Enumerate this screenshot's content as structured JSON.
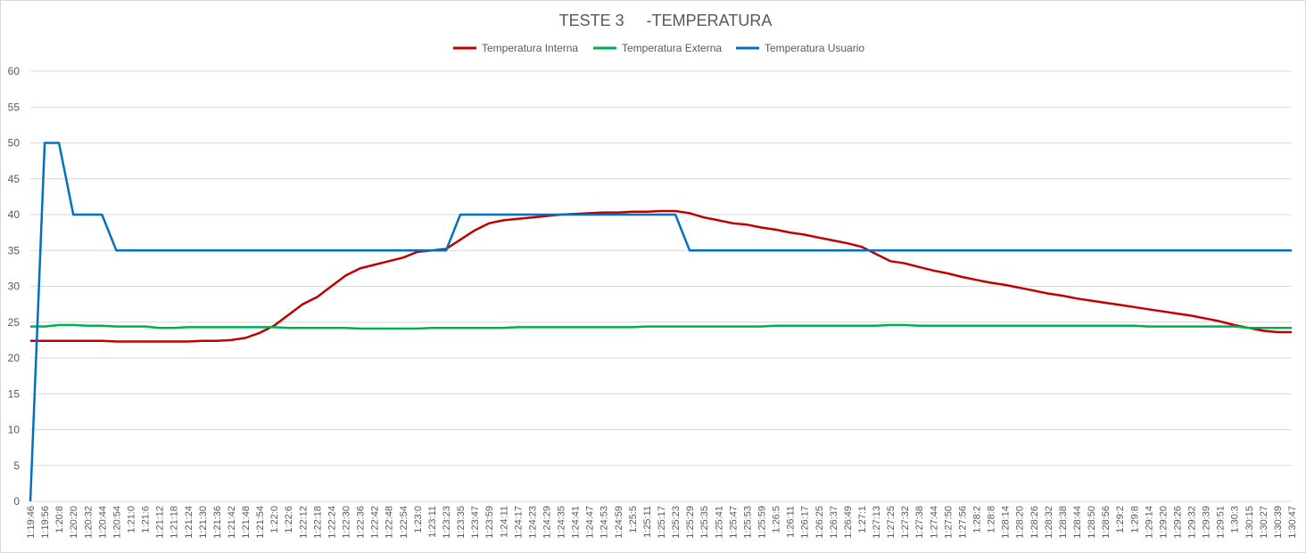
{
  "chart_data": {
    "type": "line",
    "title": "TESTE 3     -TEMPERATURA",
    "xlabel": "",
    "ylabel": "",
    "ylim": [
      0,
      60
    ],
    "yticks": [
      0,
      5,
      10,
      15,
      20,
      25,
      30,
      35,
      40,
      45,
      50,
      55,
      60
    ],
    "grid": "horizontal",
    "legend_position": "top",
    "x_tick_labels": [
      "1:19:46",
      "1:19:56",
      "1:20:8",
      "1:20:20",
      "1:20:32",
      "1:20:44",
      "1:20:54",
      "1:21:0",
      "1:21:6",
      "1:21:12",
      "1:21:18",
      "1:21:24",
      "1:21:30",
      "1:21:36",
      "1:21:42",
      "1:21:48",
      "1:21:54",
      "1:22:0",
      "1:22:6",
      "1:22:12",
      "1:22:18",
      "1:22:24",
      "1:22:30",
      "1:22:36",
      "1:22:42",
      "1:22:48",
      "1:22:54",
      "1:23:0",
      "1:23:11",
      "1:23:23",
      "1:23:35",
      "1:23:47",
      "1:23:59",
      "1:24:11",
      "1:24:17",
      "1:24:23",
      "1:24:29",
      "1:24:35",
      "1:24:41",
      "1:24:47",
      "1:24:53",
      "1:24:59",
      "1:25:5",
      "1:25:11",
      "1:25:17",
      "1:25:23",
      "1:25:29",
      "1:25:35",
      "1:25:41",
      "1:25:47",
      "1:25:53",
      "1:25:59",
      "1:26:5",
      "1:26:11",
      "1:26:17",
      "1:26:25",
      "1:26:37",
      "1:26:49",
      "1:27:1",
      "1:27:13",
      "1:27:25",
      "1:27:32",
      "1:27:38",
      "1:27:44",
      "1:27:50",
      "1:27:56",
      "1:28:2",
      "1:28:8",
      "1:28:14",
      "1:28:20",
      "1:28:26",
      "1:28:32",
      "1:28:38",
      "1:28:44",
      "1:28:50",
      "1:28:56",
      "1:29:2",
      "1:29:8",
      "1:29:14",
      "1:29:20",
      "1:29:26",
      "1:29:32",
      "1:29:39",
      "1:29:51",
      "1:30:3",
      "1:30:15",
      "1:30:27",
      "1:30:39",
      "1:30:47"
    ],
    "series": [
      {
        "name": "Temperatura Interna",
        "color": "#c00000",
        "values": [
          22.4,
          22.4,
          22.4,
          22.4,
          22.4,
          22.4,
          22.3,
          22.3,
          22.3,
          22.3,
          22.3,
          22.3,
          22.4,
          22.4,
          22.5,
          22.8,
          23.5,
          24.5,
          26.0,
          27.5,
          28.5,
          30.0,
          31.5,
          32.5,
          33.0,
          33.5,
          34.0,
          34.8,
          35.0,
          35.2,
          36.5,
          37.8,
          38.8,
          39.2,
          39.4,
          39.6,
          39.8,
          40.0,
          40.1,
          40.2,
          40.3,
          40.3,
          40.4,
          40.4,
          40.5,
          40.5,
          40.2,
          39.6,
          39.2,
          38.8,
          38.6,
          38.2,
          37.9,
          37.5,
          37.2,
          36.8,
          36.4,
          36.0,
          35.5,
          34.5,
          33.5,
          33.2,
          32.7,
          32.2,
          31.8,
          31.3,
          30.9,
          30.5,
          30.2,
          29.8,
          29.4,
          29.0,
          28.7,
          28.3,
          28.0,
          27.7,
          27.4,
          27.1,
          26.8,
          26.5,
          26.2,
          25.9,
          25.5,
          25.1,
          24.6,
          24.2,
          23.8,
          23.6,
          23.6
        ]
      },
      {
        "name": "Temperatura Externa",
        "color": "#00b050",
        "values": [
          24.4,
          24.4,
          24.6,
          24.6,
          24.5,
          24.5,
          24.4,
          24.4,
          24.4,
          24.2,
          24.2,
          24.3,
          24.3,
          24.3,
          24.3,
          24.3,
          24.3,
          24.3,
          24.2,
          24.2,
          24.2,
          24.2,
          24.2,
          24.1,
          24.1,
          24.1,
          24.1,
          24.1,
          24.2,
          24.2,
          24.2,
          24.2,
          24.2,
          24.2,
          24.3,
          24.3,
          24.3,
          24.3,
          24.3,
          24.3,
          24.3,
          24.3,
          24.3,
          24.4,
          24.4,
          24.4,
          24.4,
          24.4,
          24.4,
          24.4,
          24.4,
          24.4,
          24.5,
          24.5,
          24.5,
          24.5,
          24.5,
          24.5,
          24.5,
          24.5,
          24.6,
          24.6,
          24.5,
          24.5,
          24.5,
          24.5,
          24.5,
          24.5,
          24.5,
          24.5,
          24.5,
          24.5,
          24.5,
          24.5,
          24.5,
          24.5,
          24.5,
          24.5,
          24.4,
          24.4,
          24.4,
          24.4,
          24.4,
          24.4,
          24.4,
          24.2,
          24.2,
          24.2,
          24.2
        ]
      },
      {
        "name": "Temperatura Usuario",
        "color": "#0070c0",
        "values": [
          0,
          50,
          50,
          40,
          40,
          40,
          35,
          35,
          35,
          35,
          35,
          35,
          35,
          35,
          35,
          35,
          35,
          35,
          35,
          35,
          35,
          35,
          35,
          35,
          35,
          35,
          35,
          35,
          35,
          35,
          40,
          40,
          40,
          40,
          40,
          40,
          40,
          40,
          40,
          40,
          40,
          40,
          40,
          40,
          40,
          40,
          35,
          35,
          35,
          35,
          35,
          35,
          35,
          35,
          35,
          35,
          35,
          35,
          35,
          35,
          35,
          35,
          35,
          35,
          35,
          35,
          35,
          35,
          35,
          35,
          35,
          35,
          35,
          35,
          35,
          35,
          35,
          35,
          35,
          35,
          35,
          35,
          35,
          35,
          35,
          35,
          35,
          35,
          35
        ]
      }
    ]
  }
}
